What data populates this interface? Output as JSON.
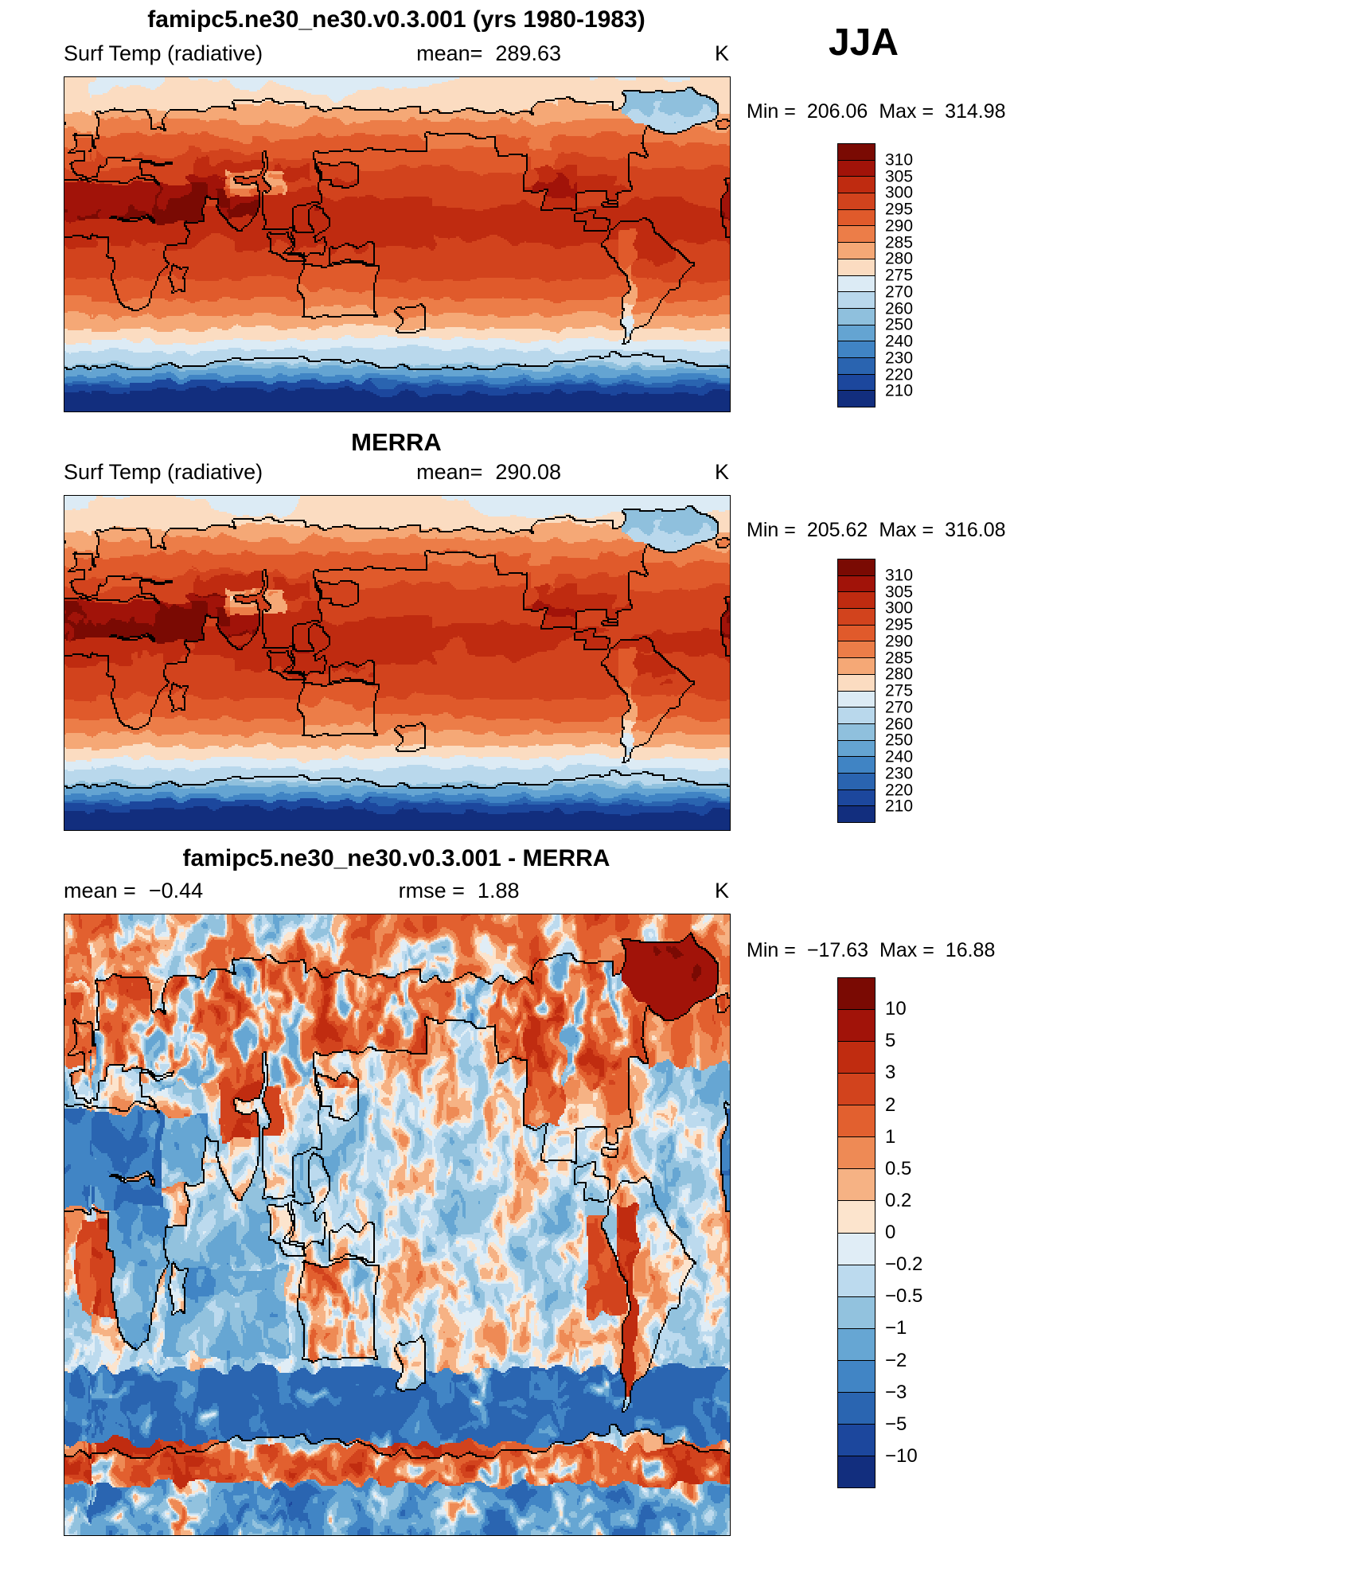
{
  "chart_data": {
    "type": "heatmap",
    "figure": "Surface temperature (radiative) model vs reanalysis comparison",
    "season": "JJA",
    "units": "K",
    "projection": "global equirectangular",
    "panels": [
      {
        "id": "model",
        "title": "famipc5.ne30_ne30.v0.3.001 (yrs 1980-1983)",
        "field_label": "Surf Temp (radiative)",
        "mean_label": "mean=",
        "mean": "289.63",
        "units": "K",
        "min_label": "Min =",
        "min": "206.06",
        "max_label": "Max =",
        "max": "314.98",
        "stats": {
          "mean": 289.63,
          "min": 206.06,
          "max": 314.98
        },
        "colorbar": {
          "levels": [
            310,
            305,
            300,
            295,
            290,
            285,
            280,
            275,
            270,
            260,
            250,
            240,
            230,
            220,
            210
          ],
          "colors": [
            "#7a0a03",
            "#a11309",
            "#bf2b10",
            "#d2431d",
            "#e05a2b",
            "#ec7d48",
            "#f5a876",
            "#fbdcc1",
            "#dcebf5",
            "#b9d8ec",
            "#8fc0dd",
            "#64a4d2",
            "#4084c4",
            "#2a64b0",
            "#1c479d",
            "#122e7e"
          ]
        }
      },
      {
        "id": "obs",
        "title": "MERRA",
        "field_label": "Surf Temp (radiative)",
        "mean_label": "mean=",
        "mean": "290.08",
        "units": "K",
        "min_label": "Min =",
        "min": "205.62",
        "max_label": "Max =",
        "max": "316.08",
        "stats": {
          "mean": 290.08,
          "min": 205.62,
          "max": 316.08
        },
        "colorbar": {
          "levels": [
            310,
            305,
            300,
            295,
            290,
            285,
            280,
            275,
            270,
            260,
            250,
            240,
            230,
            220,
            210
          ],
          "colors": [
            "#7a0a03",
            "#a11309",
            "#bf2b10",
            "#d2431d",
            "#e05a2b",
            "#ec7d48",
            "#f5a876",
            "#fbdcc1",
            "#dcebf5",
            "#b9d8ec",
            "#8fc0dd",
            "#64a4d2",
            "#4084c4",
            "#2a64b0",
            "#1c479d",
            "#122e7e"
          ]
        }
      },
      {
        "id": "difference",
        "title": "famipc5.ne30_ne30.v0.3.001 - MERRA",
        "mean_label": "mean =",
        "mean": "−0.44",
        "rmse_label": "rmse =",
        "rmse": "1.88",
        "units": "K",
        "min_label": "Min =",
        "min": "−17.63",
        "max_label": "Max =",
        "max": "16.88",
        "stats": {
          "mean": -0.44,
          "rmse": 1.88,
          "min": -17.63,
          "max": 16.88
        },
        "colorbar": {
          "levels": [
            10,
            5,
            3,
            2,
            1,
            0.5,
            0.2,
            0,
            -0.2,
            -0.5,
            -1,
            -2,
            -3,
            -5,
            -10
          ],
          "colors": [
            "#7a0a03",
            "#a11309",
            "#c02c10",
            "#d2431d",
            "#e2602f",
            "#ee8a55",
            "#f6b284",
            "#fce4cd",
            "#e0edf6",
            "#bcdaee",
            "#92c2de",
            "#66a6d3",
            "#4185c5",
            "#2a65b1",
            "#1c479d",
            "#122e7e"
          ]
        }
      }
    ]
  }
}
